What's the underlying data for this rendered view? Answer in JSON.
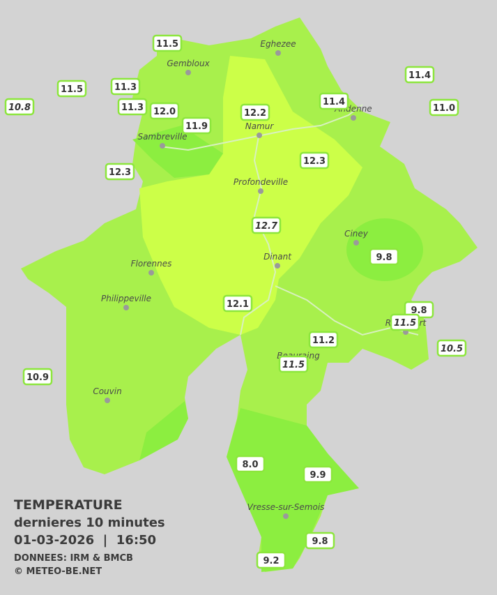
{
  "header": {
    "title": "TEMPERATURE",
    "subtitle": "dernieres 10 minutes",
    "datetime": "01-03-2026  |  16:50",
    "source": "DONNEES: IRM & BMCB",
    "copyright": "© METEO-BE.NET"
  },
  "cities": [
    {
      "name": "Eghezee"
    },
    {
      "name": "Gembloux"
    },
    {
      "name": "Andenne"
    },
    {
      "name": "Namur"
    },
    {
      "name": "Sambreville"
    },
    {
      "name": "Profondeville"
    },
    {
      "name": "Ciney"
    },
    {
      "name": "Dinant"
    },
    {
      "name": "Florennes"
    },
    {
      "name": "Philippeville"
    },
    {
      "name": "Beauraing"
    },
    {
      "name": "Rochefort"
    },
    {
      "name": "Couvin"
    },
    {
      "name": "Vresse-sur-Semois"
    }
  ],
  "temperatures": [
    {
      "label": "11.5"
    },
    {
      "label": "11.5"
    },
    {
      "label": "10.8"
    },
    {
      "label": "11.3"
    },
    {
      "label": "11.3"
    },
    {
      "label": "12.0"
    },
    {
      "label": "11.9"
    },
    {
      "label": "12.2"
    },
    {
      "label": "11.4"
    },
    {
      "label": "11.4"
    },
    {
      "label": "11.0"
    },
    {
      "label": "12.3"
    },
    {
      "label": "12.3"
    },
    {
      "label": "12.7"
    },
    {
      "label": "9.8"
    },
    {
      "label": "12.1"
    },
    {
      "label": "9.8"
    },
    {
      "label": "11.5"
    },
    {
      "label": "11.2"
    },
    {
      "label": "10.5"
    },
    {
      "label": "11.5"
    },
    {
      "label": "10.9"
    },
    {
      "label": "8.0"
    },
    {
      "label": "9.9"
    },
    {
      "label": "9.8"
    },
    {
      "label": "9.2"
    }
  ]
}
